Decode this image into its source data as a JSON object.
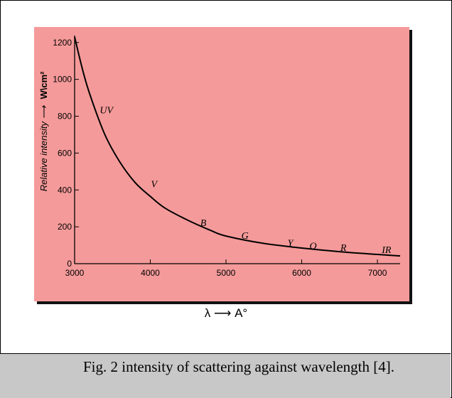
{
  "chart_data": {
    "type": "line",
    "x": [
      3000,
      3100,
      3200,
      3400,
      3600,
      3800,
      4000,
      4200,
      4500,
      4800,
      5000,
      5500,
      6000,
      6500,
      7000,
      7300
    ],
    "series": [
      {
        "values": [
          1230,
          1060,
          920,
          700,
          550,
          440,
          365,
          300,
          235,
          180,
          150,
          110,
          85,
          65,
          50,
          42
        ]
      }
    ],
    "xlabel": "λ ⟶ A°",
    "ylabel": "Relative intensity ⟶",
    "ylabel_unit": "W\\cm²",
    "x_ticks": [
      "3000",
      "4000",
      "5000",
      "6000",
      "7000"
    ],
    "y_ticks": [
      "0",
      "200",
      "400",
      "600",
      "800",
      "1000",
      "1200"
    ],
    "xlim": [
      3000,
      7300
    ],
    "ylim": [
      0,
      1230
    ],
    "grid": false,
    "annotations": [
      {
        "text": "UV",
        "x": 3420,
        "y": 815
      },
      {
        "text": "V",
        "x": 4050,
        "y": 415
      },
      {
        "text": "B",
        "x": 4700,
        "y": 205
      },
      {
        "text": "G",
        "x": 5250,
        "y": 135
      },
      {
        "text": "Y",
        "x": 5850,
        "y": 95
      },
      {
        "text": "O",
        "x": 6150,
        "y": 80
      },
      {
        "text": "R",
        "x": 6550,
        "y": 70
      },
      {
        "text": "IR",
        "x": 7120,
        "y": 58
      }
    ],
    "colors": {
      "background": "#f59a9a",
      "line": "#000000"
    }
  },
  "caption": "Fig. 2 intensity of scattering against wavelength [4]."
}
